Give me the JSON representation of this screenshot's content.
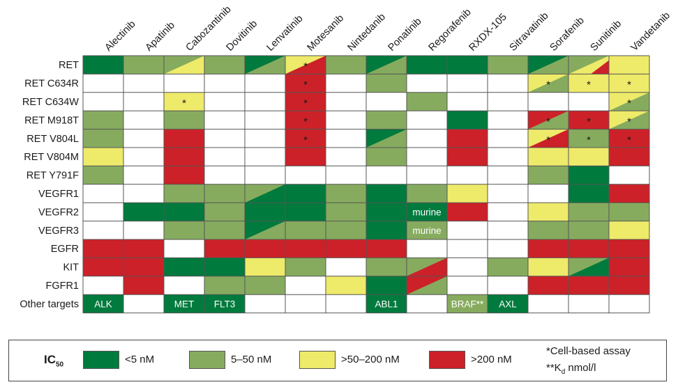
{
  "chart_data": {
    "type": "heatmap",
    "drugs": [
      "Alectinib",
      "Apatinib",
      "Cabozantinib",
      "Dovitinib",
      "Lenvatinib",
      "Motesanib",
      "Nintedanib",
      "Ponatinib",
      "Regorafenib",
      "RXDX-105",
      "Sitravatinib",
      "Sorafenib",
      "Sunitinib",
      "Vandetanib"
    ],
    "targets": [
      "RET",
      "RET C634R",
      "RET C634W",
      "RET M918T",
      "RET V804L",
      "RET V804M",
      "RET Y791F",
      "VEGFR1",
      "VEGFR2",
      "VEGFR3",
      "EGFR",
      "KIT",
      "FGFR1",
      "Other targets"
    ],
    "category_colors": {
      "W": "#ffffff",
      "D": "#007a3d",
      "L": "#86ab5e",
      "Y": "#eeea6a",
      "R": "#cc2128"
    },
    "cells": [
      [
        "D",
        "L",
        "L/Y",
        "L",
        "D/L",
        "Y/R",
        "L",
        "D/L",
        "D",
        "D",
        "L",
        "D/L",
        "L/Y/R",
        "Y"
      ],
      [
        "W",
        "W",
        "W",
        "W",
        "W",
        "R",
        "W",
        "L",
        "W",
        "W",
        "W",
        "Y/L",
        "Y",
        "Y"
      ],
      [
        "W",
        "W",
        "Y",
        "W",
        "W",
        "R",
        "W",
        "W",
        "L",
        "W",
        "W",
        "W",
        "W",
        "Y/L"
      ],
      [
        "L",
        "W",
        "L",
        "W",
        "W",
        "R",
        "W",
        "L",
        "W",
        "D",
        "W",
        "R/L",
        "R",
        "Y/L"
      ],
      [
        "L",
        "W",
        "R",
        "W",
        "W",
        "R",
        "W",
        "D/L",
        "W",
        "R",
        "W",
        "Y/R",
        "L",
        "R"
      ],
      [
        "Y",
        "W",
        "R",
        "W",
        "W",
        "R",
        "W",
        "L",
        "W",
        "R",
        "W",
        "Y",
        "Y",
        "R"
      ],
      [
        "L",
        "W",
        "R",
        "W",
        "W",
        "W",
        "W",
        "W",
        "W",
        "W",
        "W",
        "L",
        "D",
        "W"
      ],
      [
        "W",
        "W",
        "L",
        "L",
        "L/D",
        "D",
        "L",
        "D",
        "L",
        "Y",
        "W",
        "W",
        "D",
        "R"
      ],
      [
        "W",
        "D",
        "D",
        "L",
        "D",
        "D",
        "L",
        "D",
        "D",
        "R",
        "W",
        "Y",
        "L",
        "L"
      ],
      [
        "W",
        "W",
        "L",
        "L",
        "D/L",
        "L",
        "L",
        "D",
        "L",
        "W",
        "W",
        "L",
        "L",
        "Y"
      ],
      [
        "R",
        "R",
        "W",
        "R",
        "R",
        "R",
        "R",
        "R",
        "W",
        "W",
        "W",
        "R",
        "R",
        "R"
      ],
      [
        "R",
        "R",
        "D",
        "D",
        "Y",
        "L",
        "W",
        "L",
        "L/R",
        "W",
        "L",
        "Y",
        "L/D",
        "R"
      ],
      [
        "W",
        "R",
        "W",
        "L",
        "L",
        "W",
        "Y",
        "D",
        "R/L",
        "W",
        "W",
        "R",
        "R",
        "R"
      ],
      [
        "D",
        "W",
        "D",
        "D",
        "W",
        "W",
        "W",
        "D",
        "W",
        "L",
        "D",
        "W",
        "W",
        "W"
      ]
    ],
    "cell_labels": [
      {
        "row": 0,
        "col": 5,
        "text": "*"
      },
      {
        "row": 1,
        "col": 5,
        "text": "*"
      },
      {
        "row": 1,
        "col": 11,
        "text": "*"
      },
      {
        "row": 1,
        "col": 12,
        "text": "*"
      },
      {
        "row": 1,
        "col": 13,
        "text": "*"
      },
      {
        "row": 2,
        "col": 2,
        "text": "*"
      },
      {
        "row": 2,
        "col": 5,
        "text": "*"
      },
      {
        "row": 2,
        "col": 13,
        "text": "*"
      },
      {
        "row": 3,
        "col": 5,
        "text": "*"
      },
      {
        "row": 3,
        "col": 11,
        "text": "*"
      },
      {
        "row": 3,
        "col": 12,
        "text": "*"
      },
      {
        "row": 3,
        "col": 13,
        "text": "*"
      },
      {
        "row": 4,
        "col": 5,
        "text": "*"
      },
      {
        "row": 4,
        "col": 11,
        "text": "*"
      },
      {
        "row": 4,
        "col": 12,
        "text": "*"
      },
      {
        "row": 4,
        "col": 13,
        "text": "*"
      },
      {
        "row": 8,
        "col": 8,
        "text": "murine"
      },
      {
        "row": 9,
        "col": 8,
        "text": "murine"
      },
      {
        "row": 13,
        "col": 0,
        "text": "ALK"
      },
      {
        "row": 13,
        "col": 2,
        "text": "MET"
      },
      {
        "row": 13,
        "col": 3,
        "text": "FLT3"
      },
      {
        "row": 13,
        "col": 7,
        "text": "ABL1"
      },
      {
        "row": 13,
        "col": 9,
        "text": "BRAF**"
      },
      {
        "row": 13,
        "col": 10,
        "text": "AXL"
      }
    ]
  },
  "legend": {
    "title_main": "IC",
    "title_sub": "50",
    "items": [
      {
        "key": "D",
        "label": "<5 nM"
      },
      {
        "key": "L",
        "label": "5–50 nM"
      },
      {
        "key": "Y",
        "label": ">50–200 nM"
      },
      {
        "key": "R",
        "label": ">200 nM"
      }
    ],
    "note1": "*Cell-based assay",
    "note2_prefix": "**K",
    "note2_sub": "d",
    "note2_suffix": " nmol/l"
  }
}
